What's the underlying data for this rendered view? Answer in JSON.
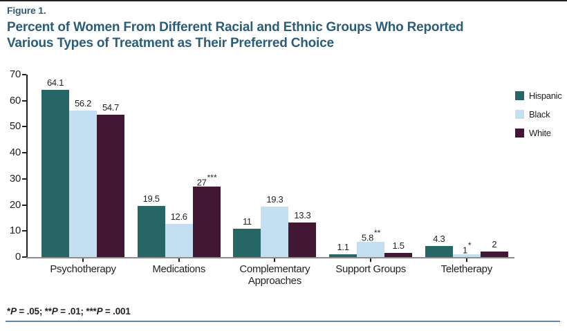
{
  "figure": {
    "label": "Figure 1.",
    "title_line1": "Percent of Women From Different Racial and Ethnic Groups Who Reported",
    "title_line2": "Various Types of Treatment as Their Preferred Choice",
    "footnote": "*P = .05; **P = .01; ***P = .001"
  },
  "colors": {
    "title_text": "#2b5d79",
    "axis": "#231f20",
    "baseline": "#8c8c8c",
    "top_rule": "#231f20",
    "bottom_rule": "#6486a0",
    "hispanic": "#266766",
    "black": "#c5dff2",
    "white": "#411733"
  },
  "chart_data": {
    "type": "bar",
    "title": "Percent of Women From Different Racial and Ethnic Groups Who Reported Various Types of Treatment as Their Preferred Choice",
    "categories": [
      "Psychotherapy",
      "Medications",
      "Complementary Approaches",
      "Support Groups",
      "Teletherapy"
    ],
    "series": [
      {
        "name": "Hispanic",
        "color": "#266766",
        "values": [
          64.1,
          19.5,
          11,
          1.1,
          4.3
        ],
        "labels": [
          "64.1",
          "19.5",
          "11",
          "1.1",
          "4.3"
        ],
        "sig": [
          "",
          "",
          "",
          "",
          ""
        ]
      },
      {
        "name": "Black",
        "color": "#c5dff2",
        "values": [
          56.2,
          12.6,
          19.3,
          5.8,
          1
        ],
        "labels": [
          "56.2",
          "12.6",
          "19.3",
          "5.8",
          "1"
        ],
        "sig": [
          "",
          "",
          "",
          "**",
          "*"
        ]
      },
      {
        "name": "White",
        "color": "#411733",
        "values": [
          54.7,
          27,
          13.3,
          1.5,
          2
        ],
        "labels": [
          "54.7",
          "27",
          "13.3",
          "1.5",
          "2"
        ],
        "sig": [
          "",
          "***",
          "",
          "",
          ""
        ]
      }
    ],
    "xlabel": "",
    "ylabel": "",
    "ylim": [
      0,
      70
    ],
    "yticks": [
      0,
      10,
      20,
      30,
      40,
      50,
      60,
      70
    ],
    "grid": false,
    "legend_position": "right"
  }
}
